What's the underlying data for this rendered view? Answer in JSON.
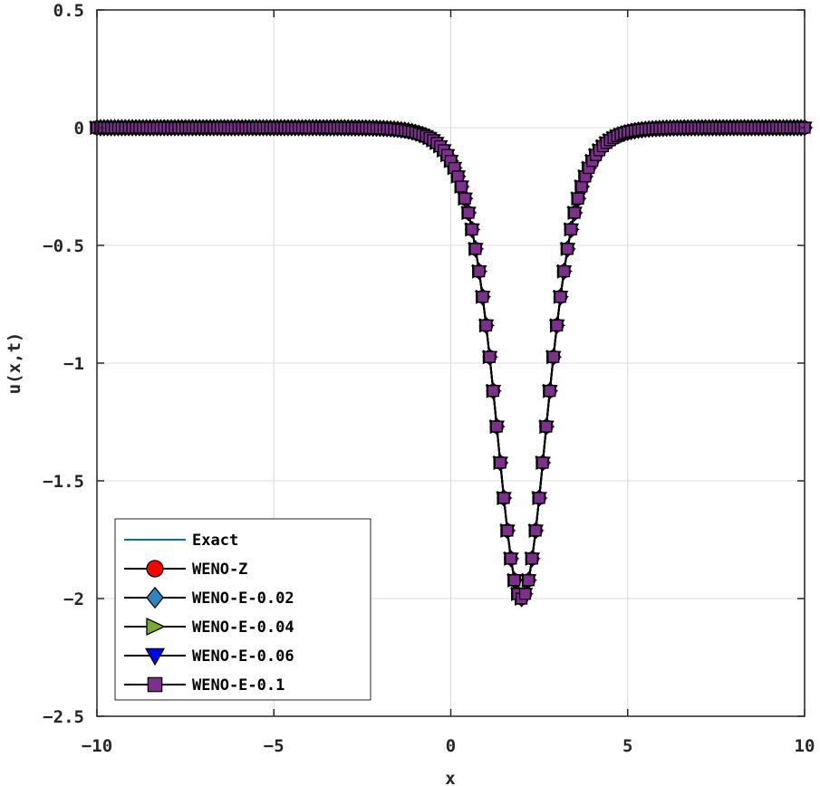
{
  "chart_data": {
    "type": "line",
    "xlabel": "x",
    "ylabel": "u(x,t)",
    "xlim": [
      -10,
      10
    ],
    "ylim": [
      -2.5,
      0.5
    ],
    "xticks": [
      -10,
      -5,
      0,
      5,
      10
    ],
    "xtick_labels": [
      "−10",
      "−5",
      "0",
      "5",
      "10"
    ],
    "yticks": [
      0.5,
      0,
      -0.5,
      -1,
      -1.5,
      -2,
      -2.5
    ],
    "ytick_labels": [
      "0.5",
      "0",
      "−0.5",
      "−1",
      "−1.5",
      "−2",
      "−2.5"
    ],
    "grid": true,
    "legend_position": "bottom-left",
    "curve": {
      "formula": "-2 * sech^2(x - 2)",
      "amplitude": -2,
      "center": 2
    },
    "series": [
      {
        "name": "Exact",
        "color": "#0072BD",
        "marker": "none"
      },
      {
        "name": "WENO-Z",
        "color": "#FF0000",
        "marker": "circle"
      },
      {
        "name": "WENO-E-0.02",
        "color": "#2E86C1",
        "marker": "diamond"
      },
      {
        "name": "WENO-E-0.04",
        "color": "#77AC30",
        "marker": "triangle-right"
      },
      {
        "name": "WENO-E-0.06",
        "color": "#0000FF",
        "marker": "triangle-down"
      },
      {
        "name": "WENO-E-0.1",
        "color": "#7E2F8E",
        "marker": "square"
      }
    ]
  }
}
